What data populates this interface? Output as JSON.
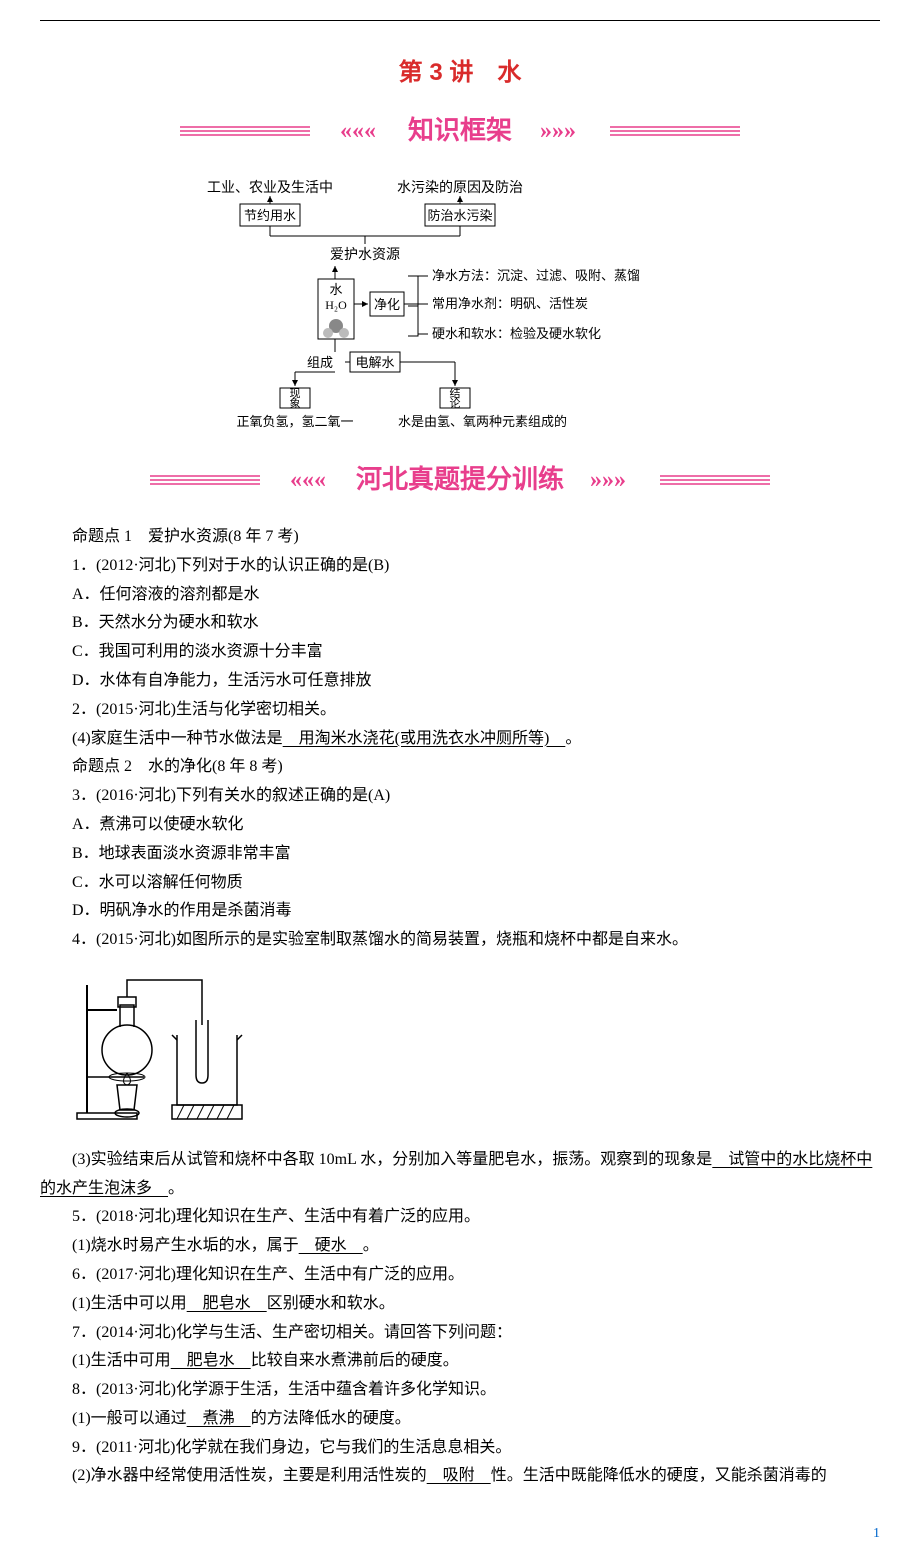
{
  "colors": {
    "title_red": "#d92b2b",
    "banner_pink": "#e83e8c",
    "banner_line": "#e83e8c",
    "page_num_blue": "#0066cc",
    "text_black": "#000000"
  },
  "title": "第 3 讲　水",
  "banner1": {
    "left_chevron": "«««",
    "text": "知识框架",
    "right_chevron": "»»»"
  },
  "diagram": {
    "top_left": "工业、农业及生活中",
    "top_right": "水污染的原因及防治",
    "row2_left": "节约用水",
    "row2_right": "防治水污染",
    "row3_center": "爱护水资源",
    "center_water": "水",
    "center_formula": "H₂O",
    "center_purify": "净化",
    "purify_1": "净水方法：沉淀、过滤、吸附、蒸馏",
    "purify_2": "常用净水剂：明矾、活性炭",
    "purify_3": "硬水和软水：检验及硬水软化",
    "bottom_left_label": "组成",
    "bottom_right_label": "电解水",
    "phenomenon_label": "现象",
    "conclusion_label": "结论",
    "bottom_left_text": "正氧负氢，氢二氧一",
    "bottom_right_text": "水是由氢、氧两种元素组成的"
  },
  "banner2": {
    "left_chevron": "«««",
    "text": "河北真题提分训练",
    "right_chevron": "»»»"
  },
  "lines": [
    {
      "text": "命题点 1　爱护水资源(8 年 7 考)"
    },
    {
      "text": "1．(2012·河北)下列对于水的认识正确的是(B)"
    },
    {
      "text": "A．任何溶液的溶剂都是水"
    },
    {
      "text": "B．天然水分为硬水和软水"
    },
    {
      "text": "C．我国可利用的淡水资源十分丰富"
    },
    {
      "text": "D．水体有自净能力，生活污水可任意排放"
    },
    {
      "text": "2．(2015·河北)生活与化学密切相关。"
    },
    {
      "prefix": "(4)家庭生活中一种节水做法是",
      "answer": "　用淘米水浇花(或用洗衣水冲厕所等)　",
      "suffix": "。"
    },
    {
      "text": "命题点 2　水的净化(8 年 8 考)"
    },
    {
      "text": "3．(2016·河北)下列有关水的叙述正确的是(A)"
    },
    {
      "text": "A．煮沸可以使硬水软化"
    },
    {
      "text": "B．地球表面淡水资源非常丰富"
    },
    {
      "text": "C．水可以溶解任何物质"
    },
    {
      "text": "D．明矾净水的作用是杀菌消毒"
    },
    {
      "text": "4．(2015·河北)如图所示的是实验室制取蒸馏水的简易装置，烧瓶和烧杯中都是自来水。"
    }
  ],
  "lines2": [
    {
      "prefix": "(3)实验结束后从试管和烧杯中各取 10mL 水，分别加入等量肥皂水，振荡。观察到的现象是",
      "answer": "　试管中的水比烧杯中的水产生泡沫多　",
      "suffix": "。",
      "noindent_continuation": true
    },
    {
      "text": "5．(2018·河北)理化知识在生产、生活中有着广泛的应用。"
    },
    {
      "prefix": "(1)烧水时易产生水垢的水，属于",
      "answer": "　硬水　",
      "suffix": "。"
    },
    {
      "text": "6．(2017·河北)理化知识在生产、生活中有广泛的应用。"
    },
    {
      "prefix": "(1)生活中可以用",
      "answer": "　肥皂水　",
      "suffix": "区别硬水和软水。"
    },
    {
      "text": "7．(2014·河北)化学与生活、生产密切相关。请回答下列问题："
    },
    {
      "prefix": "(1)生活中可用",
      "answer": "　肥皂水　",
      "suffix": "比较自来水煮沸前后的硬度。"
    },
    {
      "text": "8．(2013·河北)化学源于生活，生活中蕴含着许多化学知识。"
    },
    {
      "prefix": "(1)一般可以通过",
      "answer": "　煮沸　",
      "suffix": "的方法降低水的硬度。"
    },
    {
      "text": "9．(2011·河北)化学就在我们身边，它与我们的生活息息相关。"
    },
    {
      "prefix": "(2)净水器中经常使用活性炭，主要是利用活性炭的",
      "answer": "　吸附　",
      "suffix": "性。生活中既能降低水的硬度，又能杀菌消毒的"
    }
  ],
  "page_number": "1"
}
